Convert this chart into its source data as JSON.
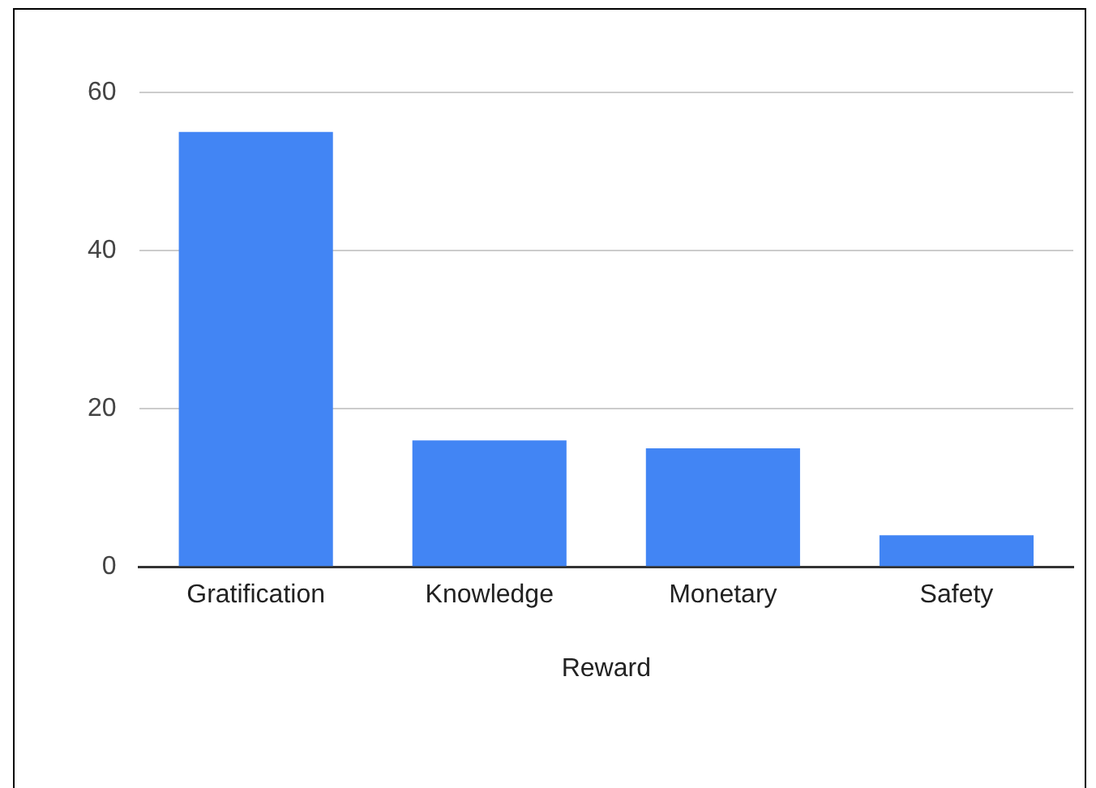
{
  "chart_data": {
    "type": "bar",
    "xlabel": "Reward",
    "categories": [
      "Gratification",
      "Knowledge",
      "Monetary",
      "Safety"
    ],
    "values": [
      55,
      16,
      15,
      4
    ],
    "color": "#4285f4",
    "ylim": [
      0,
      60
    ],
    "yticks": [
      0,
      20,
      40,
      60
    ],
    "grid": "y"
  }
}
